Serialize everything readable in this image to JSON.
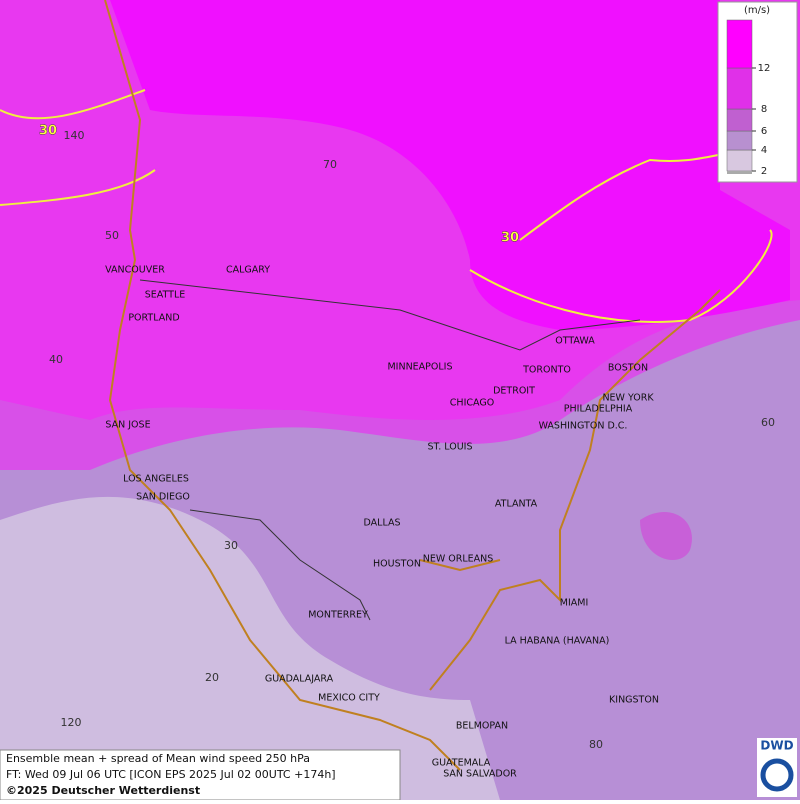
{
  "title": "Ensemble mean + spread of Mean wind speed 250 hPa",
  "forecast": "FT: Wed 09 Jul 06 UTC [ICON EPS 2025 Jul 02 00UTC +174h]",
  "copyright": "©2025 Deutscher Wetterdienst",
  "logo": "DWD",
  "legend": {
    "unit": "(m/s)",
    "ticks": [
      2,
      4,
      6,
      8,
      12
    ]
  },
  "contour_labels": [
    "30",
    "30"
  ],
  "grid_labels": [
    "70",
    "140",
    "50",
    "40",
    "30",
    "20",
    "120",
    "60",
    "80"
  ],
  "cities": [
    "VANCOUVER",
    "CALGARY",
    "SEATTLE",
    "PORTLAND",
    "MINNEAPOLIS",
    "TORONTO",
    "OTTAWA",
    "BOSTON",
    "DETROIT",
    "NEW YORK",
    "PHILADELPHIA",
    "CHICAGO",
    "SAN JOSE",
    "WASHINGTON D.C.",
    "ST. LOUIS",
    "LOS ANGELES",
    "SAN DIEGO",
    "ATLANTA",
    "DALLAS",
    "HOUSTON",
    "NEW ORLEANS",
    "MIAMI",
    "MONTERREY",
    "LA HABANA (HAVANA)",
    "GUADALAJARA",
    "MEXICO CITY",
    "KINGSTON",
    "BELMOPAN",
    "GUATEMALA",
    "SAN SALVADOR"
  ]
}
